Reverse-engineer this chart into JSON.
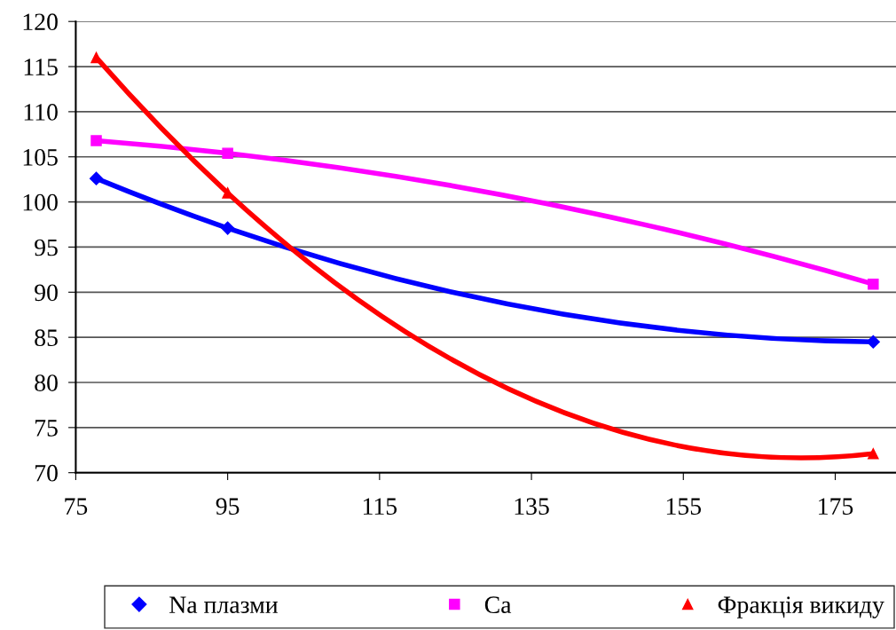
{
  "chart_data": {
    "type": "line",
    "x": [
      77.7,
      95,
      180
    ],
    "series": [
      {
        "name": "Na плазми",
        "color": "#0000ff",
        "marker": "diamond",
        "values": [
          102.6,
          97.1,
          84.5
        ]
      },
      {
        "name": "Ca",
        "color": "#ff00ff",
        "marker": "square",
        "values": [
          106.8,
          105.4,
          90.9
        ]
      },
      {
        "name": "Фракція викиду",
        "color": "#ff0000",
        "marker": "triangle",
        "values": [
          116,
          101,
          72.1
        ]
      }
    ],
    "xlim": [
      75,
      183
    ],
    "xticks": [
      75,
      95,
      115,
      135,
      155,
      175
    ],
    "ylim": [
      70,
      120
    ],
    "yticks": [
      70,
      75,
      80,
      85,
      90,
      95,
      100,
      105,
      110,
      115,
      120
    ],
    "grid": "y",
    "legend": "bottom"
  }
}
